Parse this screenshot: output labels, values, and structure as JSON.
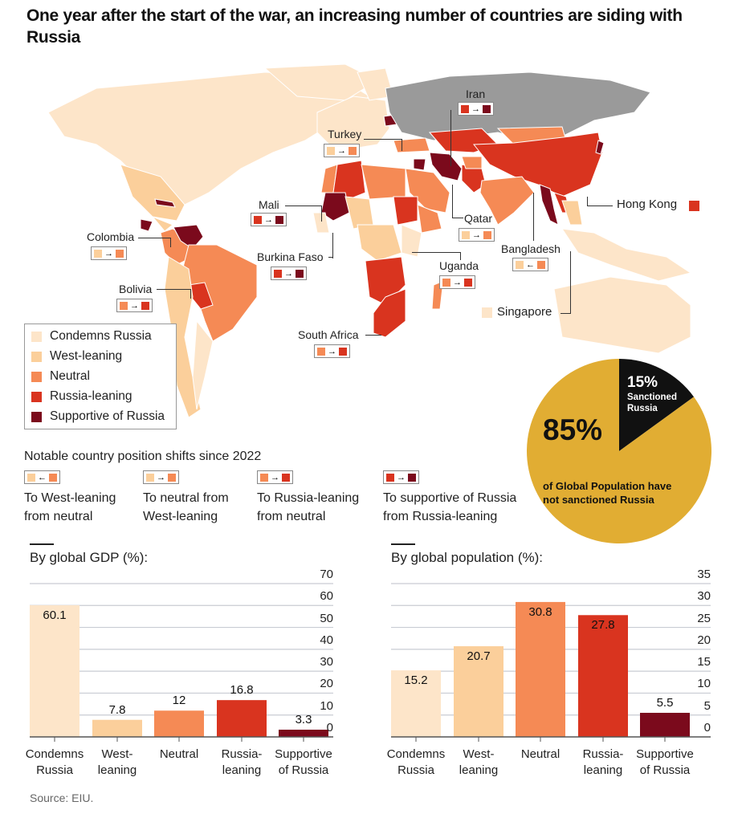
{
  "title": "One year after the start of the war, an increasing number of countries are siding with Russia",
  "colors": {
    "condemns": "#fde5c9",
    "west_leaning": "#fbcf9b",
    "neutral": "#f58a55",
    "russia_leaning": "#d9341f",
    "supportive": "#7b0a1c",
    "russia": "#9a9a9a",
    "pie_gold": "#e1ad33",
    "pie_black": "#111111"
  },
  "legend": {
    "items": [
      {
        "label": "Condemns Russia",
        "color_key": "condemns"
      },
      {
        "label": "West-leaning",
        "color_key": "west_leaning"
      },
      {
        "label": "Neutral",
        "color_key": "neutral"
      },
      {
        "label": "Russia-leaning",
        "color_key": "russia_leaning"
      },
      {
        "label": "Supportive of Russia",
        "color_key": "supportive"
      }
    ]
  },
  "map_labels": [
    {
      "name": "Iran",
      "from": "russia_leaning",
      "to": "supportive",
      "arrow": "→"
    },
    {
      "name": "Turkey",
      "from": "west_leaning",
      "to": "neutral",
      "arrow": "→"
    },
    {
      "name": "Mali",
      "from": "russia_leaning",
      "to": "supportive",
      "arrow": "→"
    },
    {
      "name": "Colombia",
      "from": "west_leaning",
      "to": "neutral",
      "arrow": "→"
    },
    {
      "name": "Burkina Faso",
      "from": "russia_leaning",
      "to": "supportive",
      "arrow": "→"
    },
    {
      "name": "Qatar",
      "from": "west_leaning",
      "to": "neutral",
      "arrow": "→"
    },
    {
      "name": "Bolivia",
      "from": "neutral",
      "to": "russia_leaning",
      "arrow": "→"
    },
    {
      "name": "Uganda",
      "from": "neutral",
      "to": "russia_leaning",
      "arrow": "→"
    },
    {
      "name": "Bangladesh",
      "from": "west_leaning",
      "to": "neutral",
      "arrow": "←"
    },
    {
      "name": "South Africa",
      "from": "neutral",
      "to": "russia_leaning",
      "arrow": "→"
    },
    {
      "name": "Hong Kong",
      "color_key": "russia_leaning"
    },
    {
      "name": "Singapore",
      "color_key": "condemns"
    }
  ],
  "shifts": {
    "title": "Notable country position shifts since 2022",
    "items": [
      {
        "line1": "To West-leaning",
        "line2": "from neutral",
        "from": "west_leaning",
        "to": "neutral",
        "arrow": "←"
      },
      {
        "line1": "To neutral from",
        "line2": "West-leaning",
        "from": "west_leaning",
        "to": "neutral",
        "arrow": "→"
      },
      {
        "line1": "To Russia-leaning",
        "line2": "from neutral",
        "from": "neutral",
        "to": "russia_leaning",
        "arrow": "→"
      },
      {
        "line1": "To supportive of Russia",
        "line2": "from Russia-leaning",
        "from": "russia_leaning",
        "to": "supportive",
        "arrow": "→"
      }
    ]
  },
  "pie": {
    "big_pct": "85%",
    "big_text_1": "of Global Population have",
    "big_text_2": "not sanctioned Russia",
    "small_pct": "15%",
    "small_text_1": "Sanctioned",
    "small_text_2": "Russia"
  },
  "chart_data": [
    {
      "type": "pie",
      "title": "",
      "slices": [
        {
          "label": "Sanctioned Russia",
          "value": 15,
          "color_key": "pie_black"
        },
        {
          "label": "of Global Population have not sanctioned Russia",
          "value": 85,
          "color_key": "pie_gold"
        }
      ]
    },
    {
      "type": "bar",
      "title": "By global GDP (%):",
      "xlabel": "",
      "ylabel": "",
      "categories": [
        [
          "Condemns",
          "Russia"
        ],
        [
          "West-",
          "leaning"
        ],
        [
          "Neutral",
          ""
        ],
        [
          "Russia-",
          "leaning"
        ],
        [
          "Supportive",
          "of Russia"
        ]
      ],
      "values": [
        60.1,
        7.8,
        12,
        16.8,
        3.3
      ],
      "value_labels": [
        "60.1",
        "7.8",
        "12",
        "16.8",
        "3.3"
      ],
      "label_inside": [
        true,
        false,
        false,
        false,
        false
      ],
      "color_keys": [
        "condemns",
        "west_leaning",
        "neutral",
        "russia_leaning",
        "supportive"
      ],
      "ylim": [
        0,
        70
      ],
      "yticks": [
        "0",
        "10",
        "20",
        "30",
        "40",
        "50",
        "60",
        "70"
      ],
      "grid": true,
      "axis_side": "right"
    },
    {
      "type": "bar",
      "title": "By global population (%):",
      "xlabel": "",
      "ylabel": "",
      "categories": [
        [
          "Condemns",
          "Russia"
        ],
        [
          "West-",
          "leaning"
        ],
        [
          "Neutral",
          ""
        ],
        [
          "Russia-",
          "leaning"
        ],
        [
          "Supportive",
          "of Russia"
        ]
      ],
      "values": [
        15.2,
        20.7,
        30.8,
        27.8,
        5.5
      ],
      "value_labels": [
        "15.2",
        "20.7",
        "30.8",
        "27.8",
        "5.5"
      ],
      "label_inside": [
        true,
        true,
        true,
        true,
        false
      ],
      "color_keys": [
        "condemns",
        "west_leaning",
        "neutral",
        "russia_leaning",
        "supportive"
      ],
      "ylim": [
        0,
        35
      ],
      "yticks": [
        "0",
        "5",
        "10",
        "15",
        "20",
        "25",
        "30",
        "35"
      ],
      "grid": true,
      "axis_side": "right"
    }
  ],
  "source": "Source: EIU."
}
